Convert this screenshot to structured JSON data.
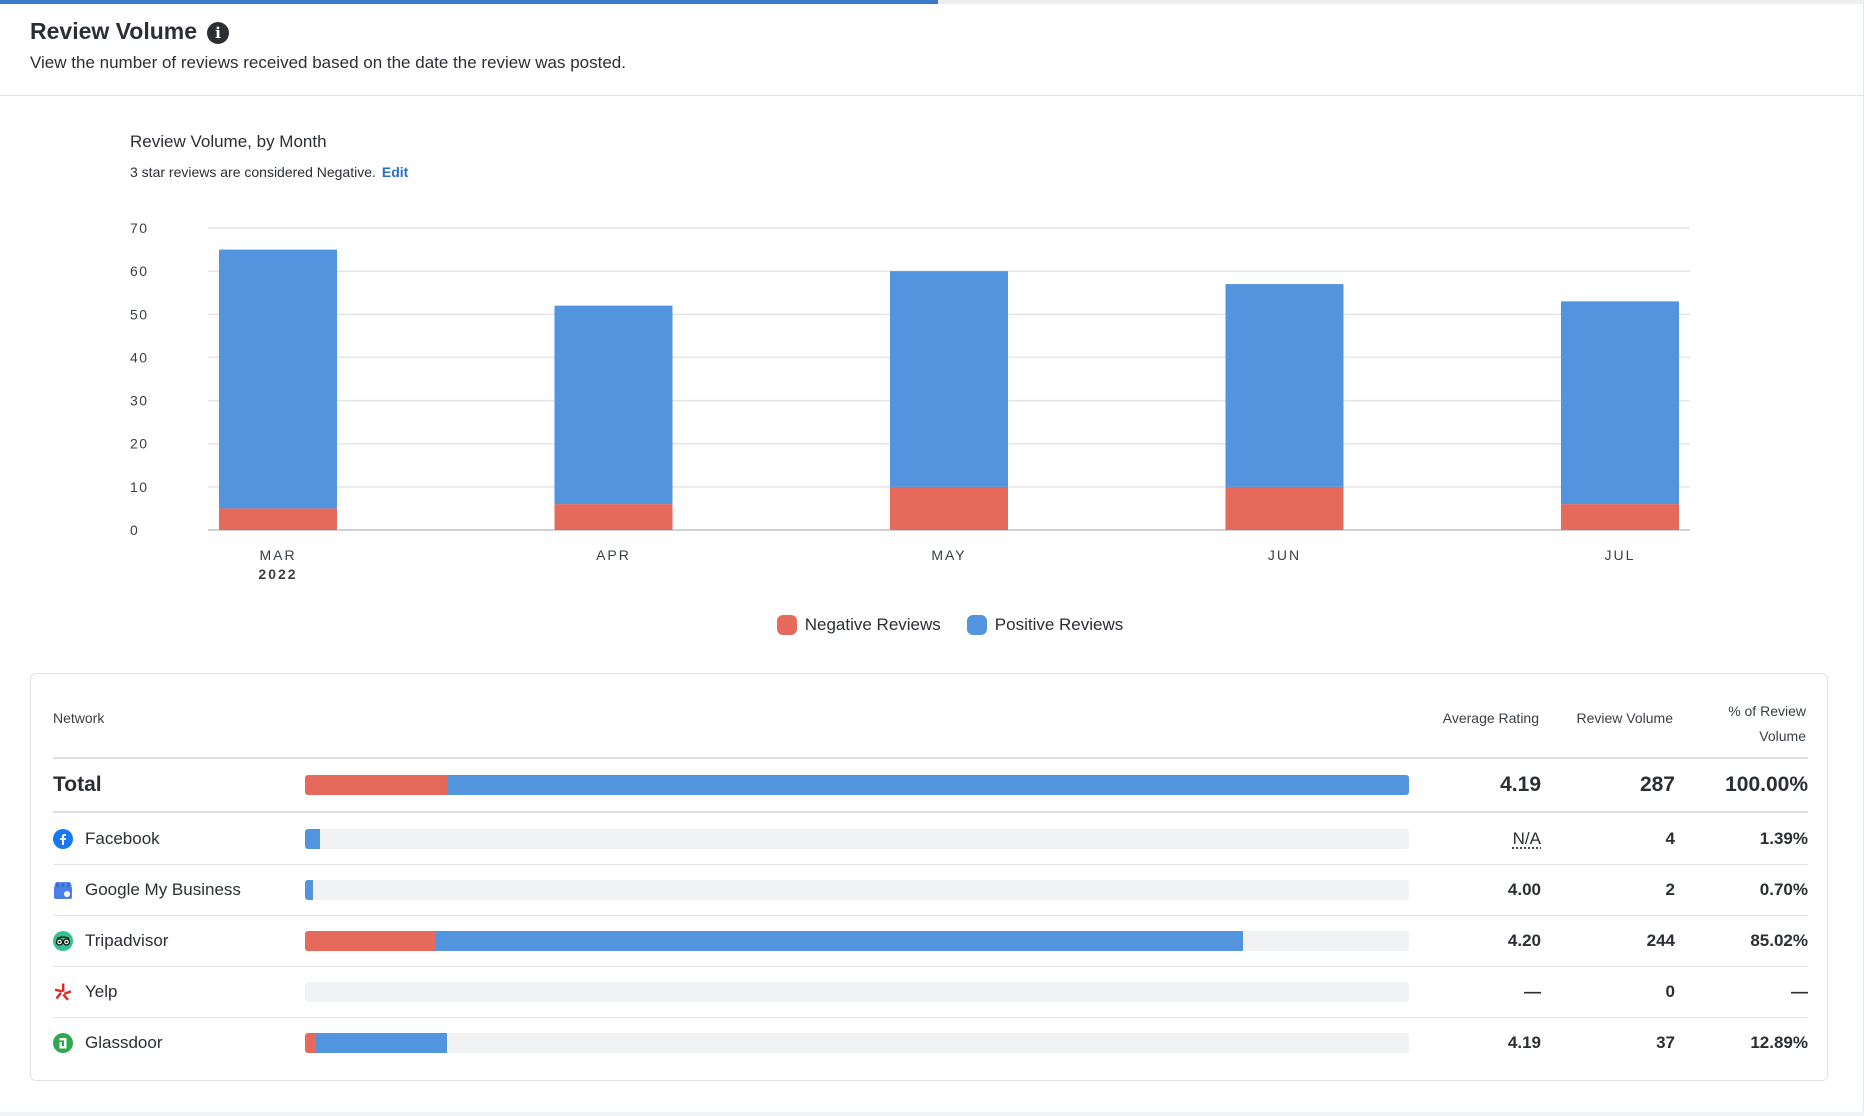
{
  "progress": {
    "fraction": 0.503,
    "color": "#3a78c9"
  },
  "header": {
    "title": "Review Volume",
    "info_icon": "info-icon",
    "subtitle": "View the number of reviews received based on the date the review was posted."
  },
  "chart_header": {
    "title": "Review Volume, by Month",
    "note": "3 star reviews are considered Negative.",
    "edit_label": "Edit"
  },
  "colors": {
    "negative": "#e56a5b",
    "positive": "#5294dd",
    "grid": "#e3e5e8"
  },
  "chart_data": {
    "type": "bar",
    "stacked": true,
    "title": "Review Volume, by Month",
    "categories": [
      "MAR",
      "APR",
      "MAY",
      "JUN",
      "JUL"
    ],
    "category_sublabels": [
      "2022",
      "",
      "",
      "",
      ""
    ],
    "series": [
      {
        "name": "Negative Reviews",
        "values": [
          5,
          6,
          10,
          10,
          6
        ]
      },
      {
        "name": "Positive Reviews",
        "values": [
          60,
          46,
          50,
          47,
          47
        ]
      }
    ],
    "ylim": [
      0,
      70
    ],
    "yticks": [
      0,
      10,
      20,
      30,
      40,
      50,
      60,
      70
    ],
    "grid": true,
    "legend_position": "bottom-center"
  },
  "legend": [
    {
      "label": "Negative Reviews",
      "color": "#e56a5b"
    },
    {
      "label": "Positive Reviews",
      "color": "#5294dd"
    }
  ],
  "table": {
    "headers": {
      "network": "Network",
      "rating": "Average Rating",
      "volume": "Review Volume",
      "pct_line1": "% of Review",
      "pct_line2": "Volume"
    },
    "total": {
      "label": "Total",
      "rating": "4.19",
      "volume": "287",
      "pct": "100.00%",
      "neg_fraction": 0.129,
      "pos_fraction": 0.871
    },
    "rows": [
      {
        "network": "Facebook",
        "icon": "facebook-icon",
        "rating": "N/A",
        "volume": "4",
        "pct": "1.39%",
        "neg_fraction": 0.0,
        "pos_fraction": 0.0139
      },
      {
        "network": "Google My Business",
        "icon": "google-my-business-icon",
        "rating": "4.00",
        "volume": "2",
        "pct": "0.70%",
        "neg_fraction": 0.0,
        "pos_fraction": 0.007
      },
      {
        "network": "Tripadvisor",
        "icon": "tripadvisor-icon",
        "rating": "4.20",
        "volume": "244",
        "pct": "85.02%",
        "neg_fraction": 0.118,
        "pos_fraction": 0.732
      },
      {
        "network": "Yelp",
        "icon": "yelp-icon",
        "rating": "—",
        "volume": "0",
        "pct": "—",
        "neg_fraction": 0.0,
        "pos_fraction": 0.0
      },
      {
        "network": "Glassdoor",
        "icon": "glassdoor-icon",
        "rating": "4.19",
        "volume": "37",
        "pct": "12.89%",
        "neg_fraction": 0.01,
        "pos_fraction": 0.119
      }
    ]
  }
}
